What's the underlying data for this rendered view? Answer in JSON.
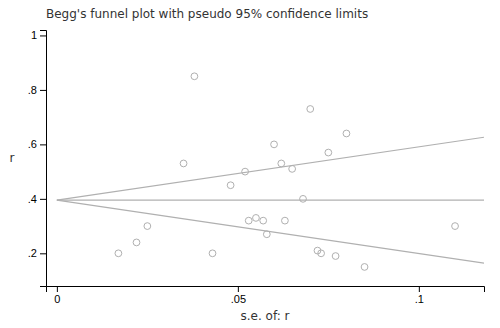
{
  "chart_data": {
    "type": "scatter",
    "title": "Begg's funnel plot with pseudo 95% confidence limits",
    "xlabel": "s.e. of: r",
    "ylabel": "r",
    "xlim": [
      -0.003,
      0.118
    ],
    "ylim": [
      0.08,
      1.02
    ],
    "xticks": [
      0,
      {
        "value": 0.05,
        "label": ".05"
      },
      {
        "value": 0.1,
        "label": ".1"
      }
    ],
    "yticks": [
      {
        "value": 0.2,
        "label": ".2"
      },
      {
        "value": 0.4,
        "label": ".4"
      },
      {
        "value": 0.6,
        "label": ".6"
      },
      {
        "value": 0.8,
        "label": ".8"
      },
      1
    ],
    "series": [
      {
        "type": "line",
        "color": "#b0b0b0",
        "x": [
          0.0,
          0.118
        ],
        "values": [
          0.395,
          0.62628
        ]
      },
      {
        "type": "line",
        "color": "#b0b0b0",
        "x": [
          0.0,
          0.118
        ],
        "values": [
          0.395,
          0.16372
        ]
      },
      {
        "type": "line",
        "color": "#b0b0b0",
        "x": [
          0.0,
          0.118
        ],
        "values": [
          0.395,
          0.395
        ]
      },
      {
        "type": "scatter",
        "color": "#b0b0b0",
        "marker": "circle",
        "x": [
          0.017,
          0.022,
          0.025,
          0.035,
          0.038,
          0.043,
          0.048,
          0.052,
          0.053,
          0.055,
          0.057,
          0.058,
          0.06,
          0.062,
          0.063,
          0.065,
          0.068,
          0.07,
          0.072,
          0.073,
          0.075,
          0.077,
          0.08,
          0.085,
          0.11
        ],
        "values": [
          0.2,
          0.24,
          0.3,
          0.53,
          0.85,
          0.2,
          0.45,
          0.5,
          0.32,
          0.33,
          0.32,
          0.27,
          0.6,
          0.53,
          0.32,
          0.51,
          0.4,
          0.73,
          0.21,
          0.2,
          0.57,
          0.19,
          0.64,
          0.15,
          0.3
        ]
      }
    ]
  }
}
